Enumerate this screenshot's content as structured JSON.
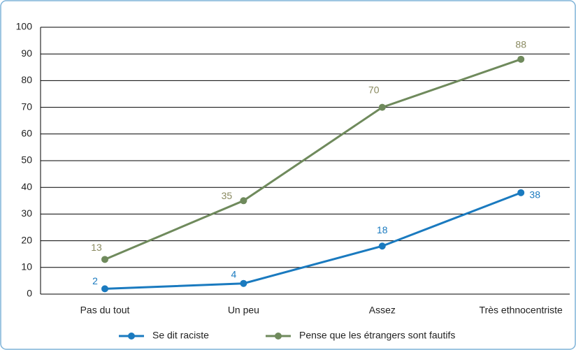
{
  "chart_data": {
    "type": "line",
    "categories": [
      "Pas du tout",
      "Un peu",
      "Assez",
      "Très ethnocentriste"
    ],
    "series": [
      {
        "name": "Se dit raciste",
        "color": "#1a7abf",
        "values": [
          2,
          4,
          18,
          38
        ]
      },
      {
        "name": "Pense que les étrangers sont fautifs",
        "color": "#6f8a5c",
        "values": [
          13,
          35,
          70,
          88
        ]
      }
    ],
    "ylim": [
      0,
      100
    ],
    "yticks": [
      0,
      10,
      20,
      30,
      40,
      50,
      60,
      70,
      80,
      90,
      100
    ],
    "grid": true,
    "legend": "bottom"
  }
}
